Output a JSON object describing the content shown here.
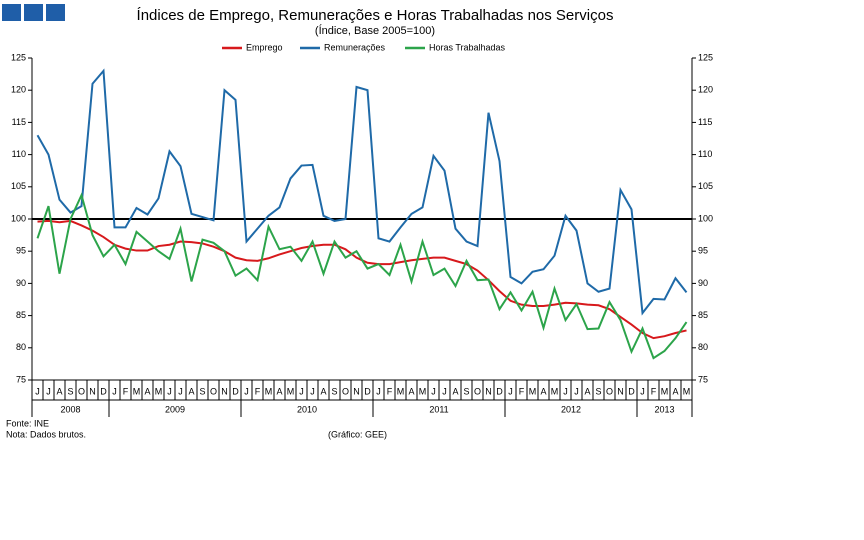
{
  "chart_data": {
    "type": "line",
    "title": "Índices de Emprego, Remunerações e Horas Trabalhadas nos Serviços",
    "subtitle": "(Índice, Base 2005=100)",
    "categories": [
      "J",
      "J",
      "A",
      "S",
      "O",
      "N",
      "D",
      "J",
      "F",
      "M",
      "A",
      "M",
      "J",
      "J",
      "A",
      "S",
      "O",
      "N",
      "D",
      "J",
      "F",
      "M",
      "A",
      "M",
      "J",
      "J",
      "A",
      "S",
      "O",
      "N",
      "D",
      "J",
      "F",
      "M",
      "A",
      "M",
      "J",
      "J",
      "A",
      "S",
      "O",
      "N",
      "D",
      "J",
      "F",
      "M",
      "A",
      "M",
      "J",
      "J",
      "A",
      "S",
      "O",
      "N",
      "D",
      "J",
      "F",
      "M",
      "A",
      "M"
    ],
    "years": [
      "2008",
      "2009",
      "2010",
      "2011",
      "2012",
      "2013"
    ],
    "series": [
      {
        "name": "Emprego",
        "color": "#d7191c",
        "values": [
          99.6,
          99.7,
          99.5,
          99.7,
          99,
          98.2,
          97.2,
          96,
          95.4,
          95.1,
          95.1,
          95.8,
          96,
          96.5,
          96.4,
          96.2,
          95.7,
          95,
          94,
          93.6,
          93.5,
          93.9,
          94.5,
          95,
          95.5,
          95.8,
          96,
          96,
          95.3,
          94,
          93.2,
          93,
          93,
          93.3,
          93.6,
          93.8,
          94,
          94,
          93.5,
          93,
          92,
          90.5,
          88.8,
          87.3,
          86.7,
          86.5,
          86.5,
          86.7,
          87,
          86.9,
          86.7,
          86.6,
          86,
          84.8,
          83.6,
          82.3,
          81.5,
          81.8,
          82.3,
          82.7
        ]
      },
      {
        "name": "Remunerações",
        "color": "#1f6aa8",
        "values": [
          113,
          110,
          103,
          101,
          102,
          121,
          123,
          98.7,
          98.7,
          101.7,
          100.7,
          103.2,
          110.5,
          108.2,
          100.8,
          100.3,
          99.8,
          120,
          118.5,
          96.5,
          98.5,
          100.5,
          101.8,
          106.3,
          108.3,
          108.4,
          100.5,
          99.7,
          100,
          120.5,
          120,
          97,
          96.5,
          98.7,
          100.8,
          101.8,
          109.8,
          107.5,
          98.5,
          96.5,
          95.8,
          116.5,
          109,
          91,
          90,
          91.8,
          92.2,
          94.3,
          100.5,
          98.2,
          90,
          88.7,
          89.2,
          104.5,
          101.5,
          85.4,
          87.6,
          87.5,
          90.8,
          88.6
        ]
      },
      {
        "name": "Horas Trabalhadas",
        "color": "#2ca44a",
        "values": [
          97,
          102,
          91.5,
          100,
          103.7,
          97.5,
          94.2,
          96,
          93,
          98,
          96.5,
          95,
          93.8,
          98.5,
          90.3,
          96.8,
          96.3,
          95,
          91.2,
          92.3,
          90.5,
          98.8,
          95.3,
          95.7,
          93.5,
          96.5,
          91.5,
          96.5,
          94,
          95,
          92.3,
          93,
          91.3,
          96,
          90.3,
          96.5,
          91.3,
          92.3,
          89.6,
          93.5,
          90.5,
          90.6,
          86,
          88.6,
          85.8,
          88.7,
          83.1,
          89.2,
          84.3,
          86.8,
          82.9,
          83,
          87.1,
          84.3,
          79.4,
          83,
          78.4,
          79.5,
          81.5,
          84
        ]
      }
    ],
    "reference_line": 100,
    "ylim": [
      75,
      125
    ],
    "yticks": [
      75,
      80,
      85,
      90,
      95,
      100,
      105,
      110,
      115,
      120,
      125
    ],
    "y2lim": [
      75,
      125
    ],
    "y2ticks": [
      75,
      80,
      85,
      90,
      95,
      100,
      105,
      110,
      115,
      120,
      125
    ],
    "legend": "top",
    "notes": [
      "Fonte: INE",
      "Nota: Dados brutos."
    ],
    "source": "(Gráfico: GEE)"
  }
}
